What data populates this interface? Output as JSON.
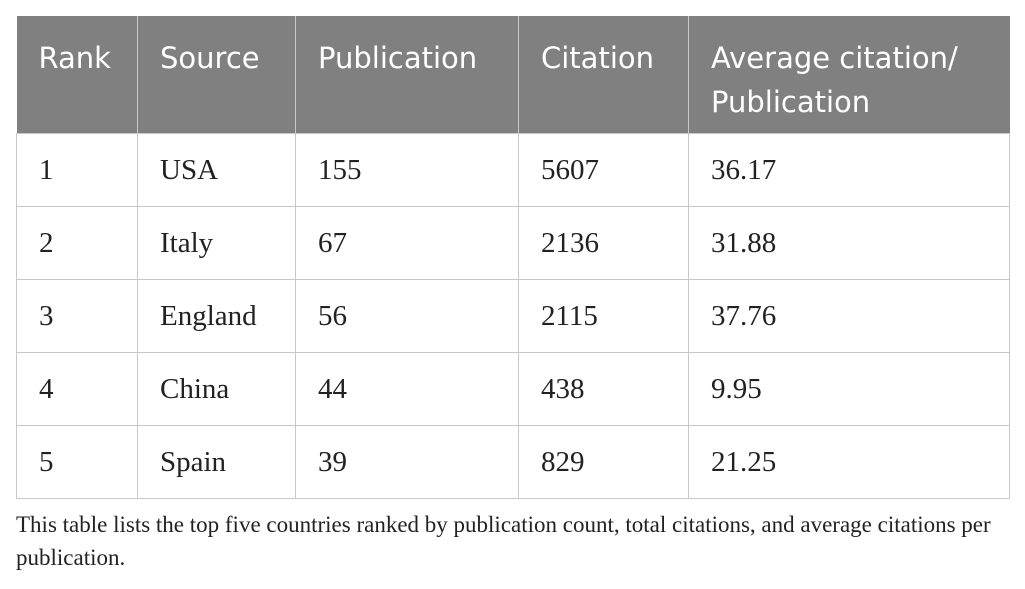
{
  "table": {
    "header": [
      "Rank",
      "Source",
      "Publication",
      "Citation",
      "Average citation/ Publication"
    ],
    "rows": [
      [
        1,
        "USA",
        155,
        5607,
        36.17
      ],
      [
        2,
        "Italy",
        67,
        2136,
        31.88
      ],
      [
        3,
        "England",
        56,
        2115,
        37.76
      ],
      [
        4,
        "China",
        44,
        438,
        9.95
      ],
      [
        5,
        "Spain",
        39,
        829,
        21.25
      ]
    ],
    "caption": "This table lists the top five countries ranked by publication count, total citations, and average citations per publication."
  }
}
